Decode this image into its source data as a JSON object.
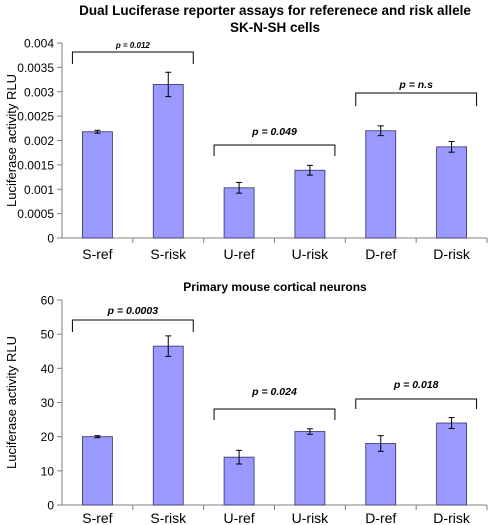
{
  "chart_data": [
    {
      "type": "bar",
      "title": "Dual Luciferase reporter assays for referenece and risk allele",
      "subtitle": "SK-N-SH cells",
      "ylabel": "Luciferase activity RLU",
      "categories": [
        "S-ref",
        "S-risk",
        "U-ref",
        "U-risk",
        "D-ref",
        "D-risk"
      ],
      "values": [
        0.00218,
        0.00315,
        0.00103,
        0.00139,
        0.0022,
        0.00187
      ],
      "errors": [
        3e-05,
        0.00025,
        0.00011,
        0.0001,
        0.0001,
        0.00011
      ],
      "ylim": [
        0,
        0.004
      ],
      "yticks": [
        "0",
        "0.0005",
        "0.001",
        "0.0015",
        "0.002",
        "0.0025",
        "0.003",
        "0.0035",
        "0.004"
      ],
      "bar_color": "#9999ff",
      "annotations": [
        {
          "text": "p = 0.012",
          "from": 0,
          "to": 1
        },
        {
          "text": "p = 0.049",
          "from": 2,
          "to": 3
        },
        {
          "text": "p = n.s",
          "from": 4,
          "to": 5
        }
      ]
    },
    {
      "type": "bar",
      "title": "Primary mouse cortical neurons",
      "ylabel": "Luciferase activity RLU",
      "categories": [
        "S-ref",
        "S-risk",
        "U-ref",
        "U-risk",
        "D-ref",
        "D-risk"
      ],
      "values": [
        20,
        46.5,
        14,
        21.5,
        18,
        24
      ],
      "errors": [
        0.3,
        3.0,
        2.0,
        0.8,
        2.3,
        1.6
      ],
      "ylim": [
        0,
        60
      ],
      "yticks": [
        "0",
        "10",
        "20",
        "30",
        "40",
        "50",
        "60"
      ],
      "bar_color": "#9999ff",
      "annotations": [
        {
          "text": "p = 0.0003",
          "from": 0,
          "to": 1
        },
        {
          "text": "p = 0.024",
          "from": 2,
          "to": 3
        },
        {
          "text": "p = 0.018",
          "from": 4,
          "to": 5
        }
      ]
    }
  ]
}
